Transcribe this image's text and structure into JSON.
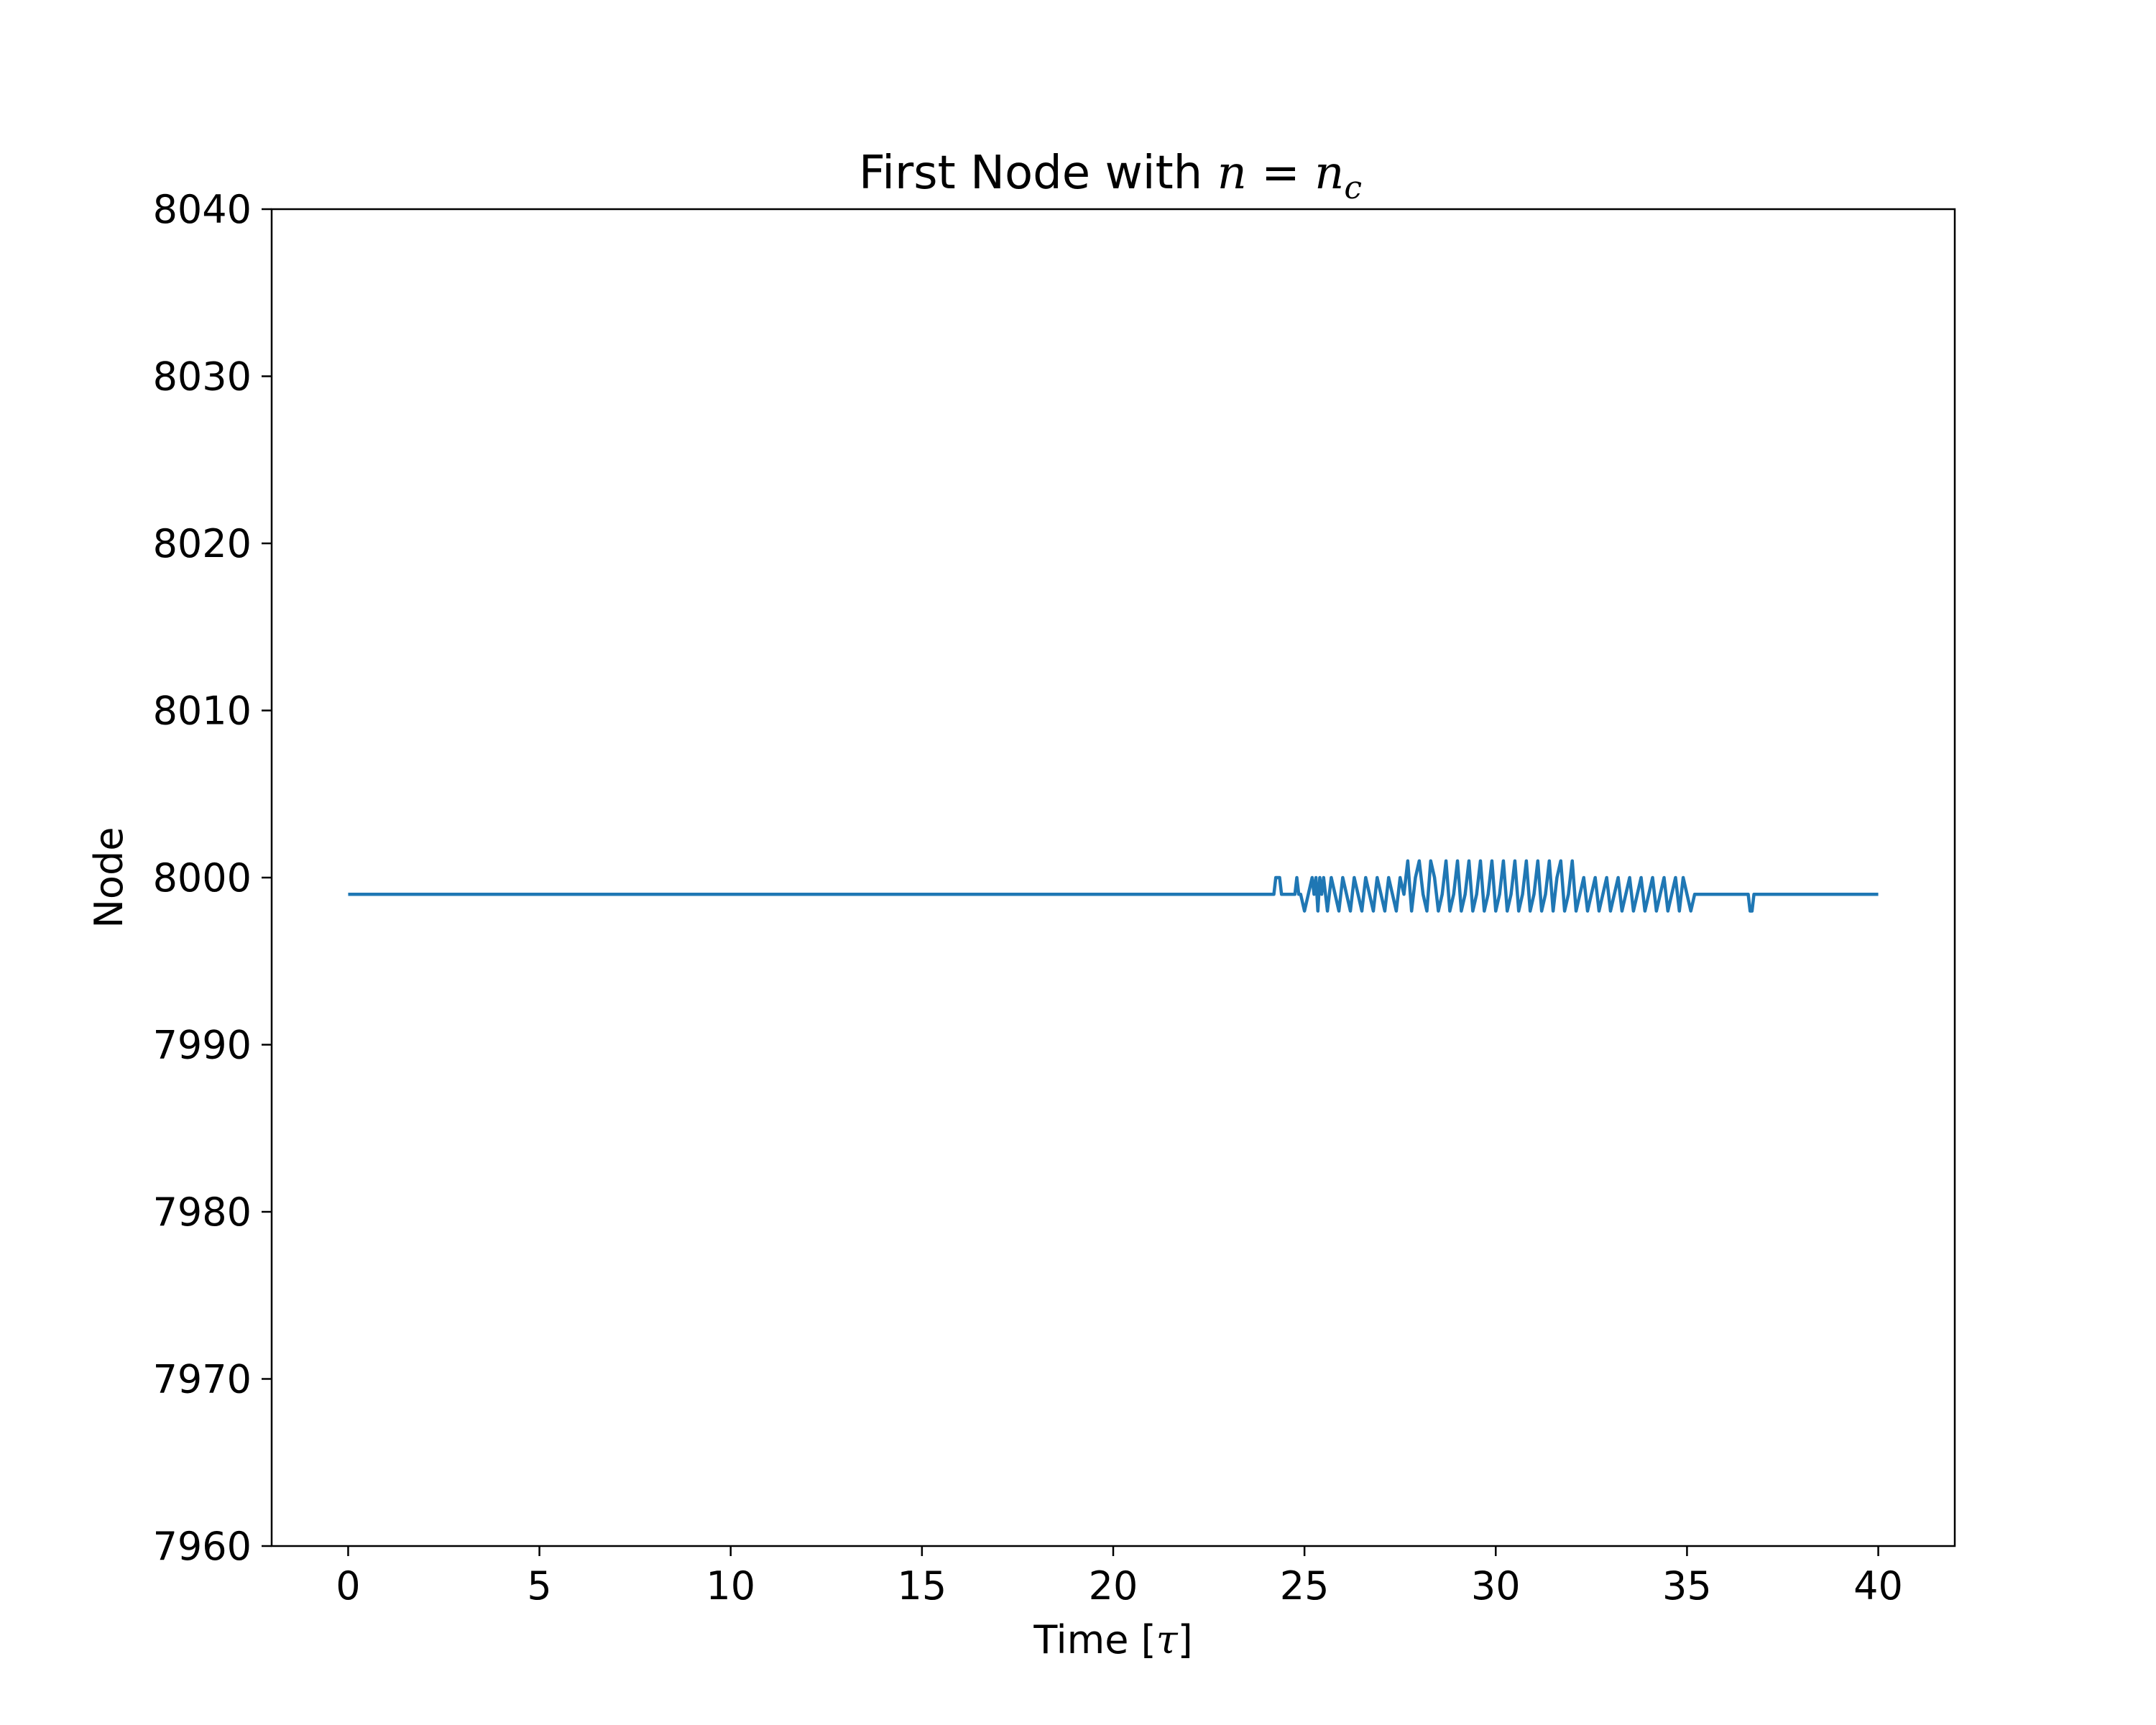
{
  "chart_data": {
    "type": "line",
    "title": {
      "text": "First Node with ",
      "math_lhs": "n",
      "math_eq": " = ",
      "math_rhs": "n",
      "math_sub": "c"
    },
    "xlabel": {
      "text": "Time [",
      "math": "τ",
      "suffix": "]"
    },
    "ylabel": "Node",
    "xlim": [
      -2,
      42
    ],
    "ylim": [
      7960,
      8040
    ],
    "xticks": [
      0,
      5,
      10,
      15,
      20,
      25,
      30,
      35,
      40
    ],
    "yticks": [
      7960,
      7970,
      7980,
      7990,
      8000,
      8010,
      8020,
      8030,
      8040
    ],
    "grid": false,
    "series": [
      {
        "color": "#1f77b4",
        "x": [
          0,
          24.2,
          24.25,
          24.35,
          24.4,
          24.75,
          24.8,
          24.85,
          24.9,
          25.0,
          25.1,
          25.2,
          25.25,
          25.3,
          25.35,
          25.4,
          25.45,
          25.5,
          25.55,
          25.6,
          25.7,
          25.8,
          25.9,
          26.0,
          26.1,
          26.2,
          26.3,
          26.4,
          26.5,
          26.6,
          26.7,
          26.8,
          26.9,
          27.0,
          27.1,
          27.2,
          27.3,
          27.4,
          27.5,
          27.6,
          27.7,
          27.8,
          27.9,
          28.0,
          28.1,
          28.2,
          28.3,
          28.4,
          28.5,
          28.6,
          28.7,
          28.8,
          28.9,
          29.0,
          29.1,
          29.2,
          29.3,
          29.4,
          29.5,
          29.6,
          29.7,
          29.8,
          29.9,
          30.0,
          30.1,
          30.2,
          30.3,
          30.4,
          30.5,
          30.6,
          30.7,
          30.8,
          30.9,
          31.0,
          31.1,
          31.2,
          31.3,
          31.4,
          31.5,
          31.6,
          31.7,
          31.8,
          31.9,
          32.0,
          32.1,
          32.2,
          32.3,
          32.4,
          32.5,
          32.6,
          32.7,
          32.8,
          32.9,
          33.0,
          33.1,
          33.2,
          33.3,
          33.4,
          33.5,
          33.6,
          33.7,
          33.8,
          33.9,
          34.0,
          34.1,
          34.2,
          34.3,
          34.4,
          34.5,
          34.6,
          34.7,
          34.8,
          34.9,
          35.0,
          35.1,
          35.2,
          36.6,
          36.65,
          36.7,
          36.75,
          40
        ],
        "y": [
          7999,
          7999,
          8000,
          8000,
          7999,
          7999,
          8000,
          7999,
          7999,
          7998,
          7999,
          8000,
          7999,
          8000,
          7998,
          8000,
          7999,
          8000,
          7999,
          7998,
          8000,
          7999,
          7998,
          8000,
          7999,
          7998,
          8000,
          7999,
          7998,
          8000,
          7999,
          7998,
          8000,
          7999,
          7998,
          8000,
          7999,
          7998,
          8000,
          7999,
          8001,
          7998,
          8000,
          8001,
          7999,
          7998,
          8001,
          8000,
          7998,
          7999,
          8001,
          7998,
          7999,
          8001,
          7998,
          7999,
          8001,
          7998,
          7999,
          8001,
          7998,
          7999,
          8001,
          7998,
          7999,
          8001,
          7998,
          7999,
          8001,
          7998,
          7999,
          8001,
          7998,
          7999,
          8001,
          7998,
          7999,
          8001,
          7998,
          8000,
          8001,
          7998,
          7999,
          8001,
          7998,
          7999,
          8000,
          7998,
          7999,
          8000,
          7998,
          7999,
          8000,
          7998,
          7999,
          8000,
          7998,
          7999,
          8000,
          7998,
          7999,
          8000,
          7998,
          7999,
          8000,
          7998,
          7999,
          8000,
          7998,
          7999,
          8000,
          7998,
          8000,
          7999,
          7998,
          7999,
          7999,
          7998,
          7998,
          7999,
          7999
        ]
      }
    ]
  }
}
